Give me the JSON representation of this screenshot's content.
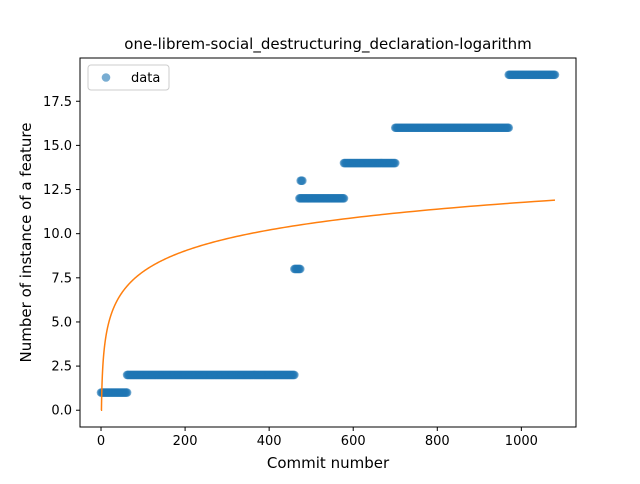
{
  "chart_data": {
    "type": "scatter",
    "title": "one-librem-social_destructuring_declaration-logarithm",
    "xlabel": "Commit number",
    "ylabel": "Number of instance of a feature",
    "xlim": [
      -50,
      1130
    ],
    "ylim": [
      -0.95,
      19.95
    ],
    "xticks": [
      0,
      200,
      400,
      600,
      800,
      1000
    ],
    "yticks": [
      0.0,
      2.5,
      5.0,
      7.5,
      10.0,
      12.5,
      15.0,
      17.5
    ],
    "xtick_labels": [
      "0",
      "200",
      "400",
      "600",
      "800",
      "1000"
    ],
    "ytick_labels": [
      "0.0",
      "2.5",
      "5.0",
      "7.5",
      "10.0",
      "12.5",
      "15.0",
      "17.5"
    ],
    "grid": false,
    "legend_position": "upper-left",
    "series": [
      {
        "name": "data",
        "kind": "scatter",
        "color": "#1f77b4",
        "segments": [
          {
            "x_start": 0,
            "x_end": 62,
            "y": 1
          },
          {
            "x_start": 62,
            "x_end": 460,
            "y": 2
          },
          {
            "x_start": 460,
            "x_end": 475,
            "y": 8
          },
          {
            "x_start": 475,
            "x_end": 480,
            "y": 13
          },
          {
            "x_start": 472,
            "x_end": 578,
            "y": 12
          },
          {
            "x_start": 578,
            "x_end": 700,
            "y": 14
          },
          {
            "x_start": 700,
            "x_end": 970,
            "y": 16
          },
          {
            "x_start": 970,
            "x_end": 1080,
            "y": 19
          }
        ]
      },
      {
        "name": "",
        "kind": "line",
        "color": "#ff7f0e",
        "function": "logarithmic",
        "x_range": [
          0,
          1080
        ],
        "y_at_x1": 0.0,
        "y_at_xmax": 11.9
      }
    ]
  }
}
